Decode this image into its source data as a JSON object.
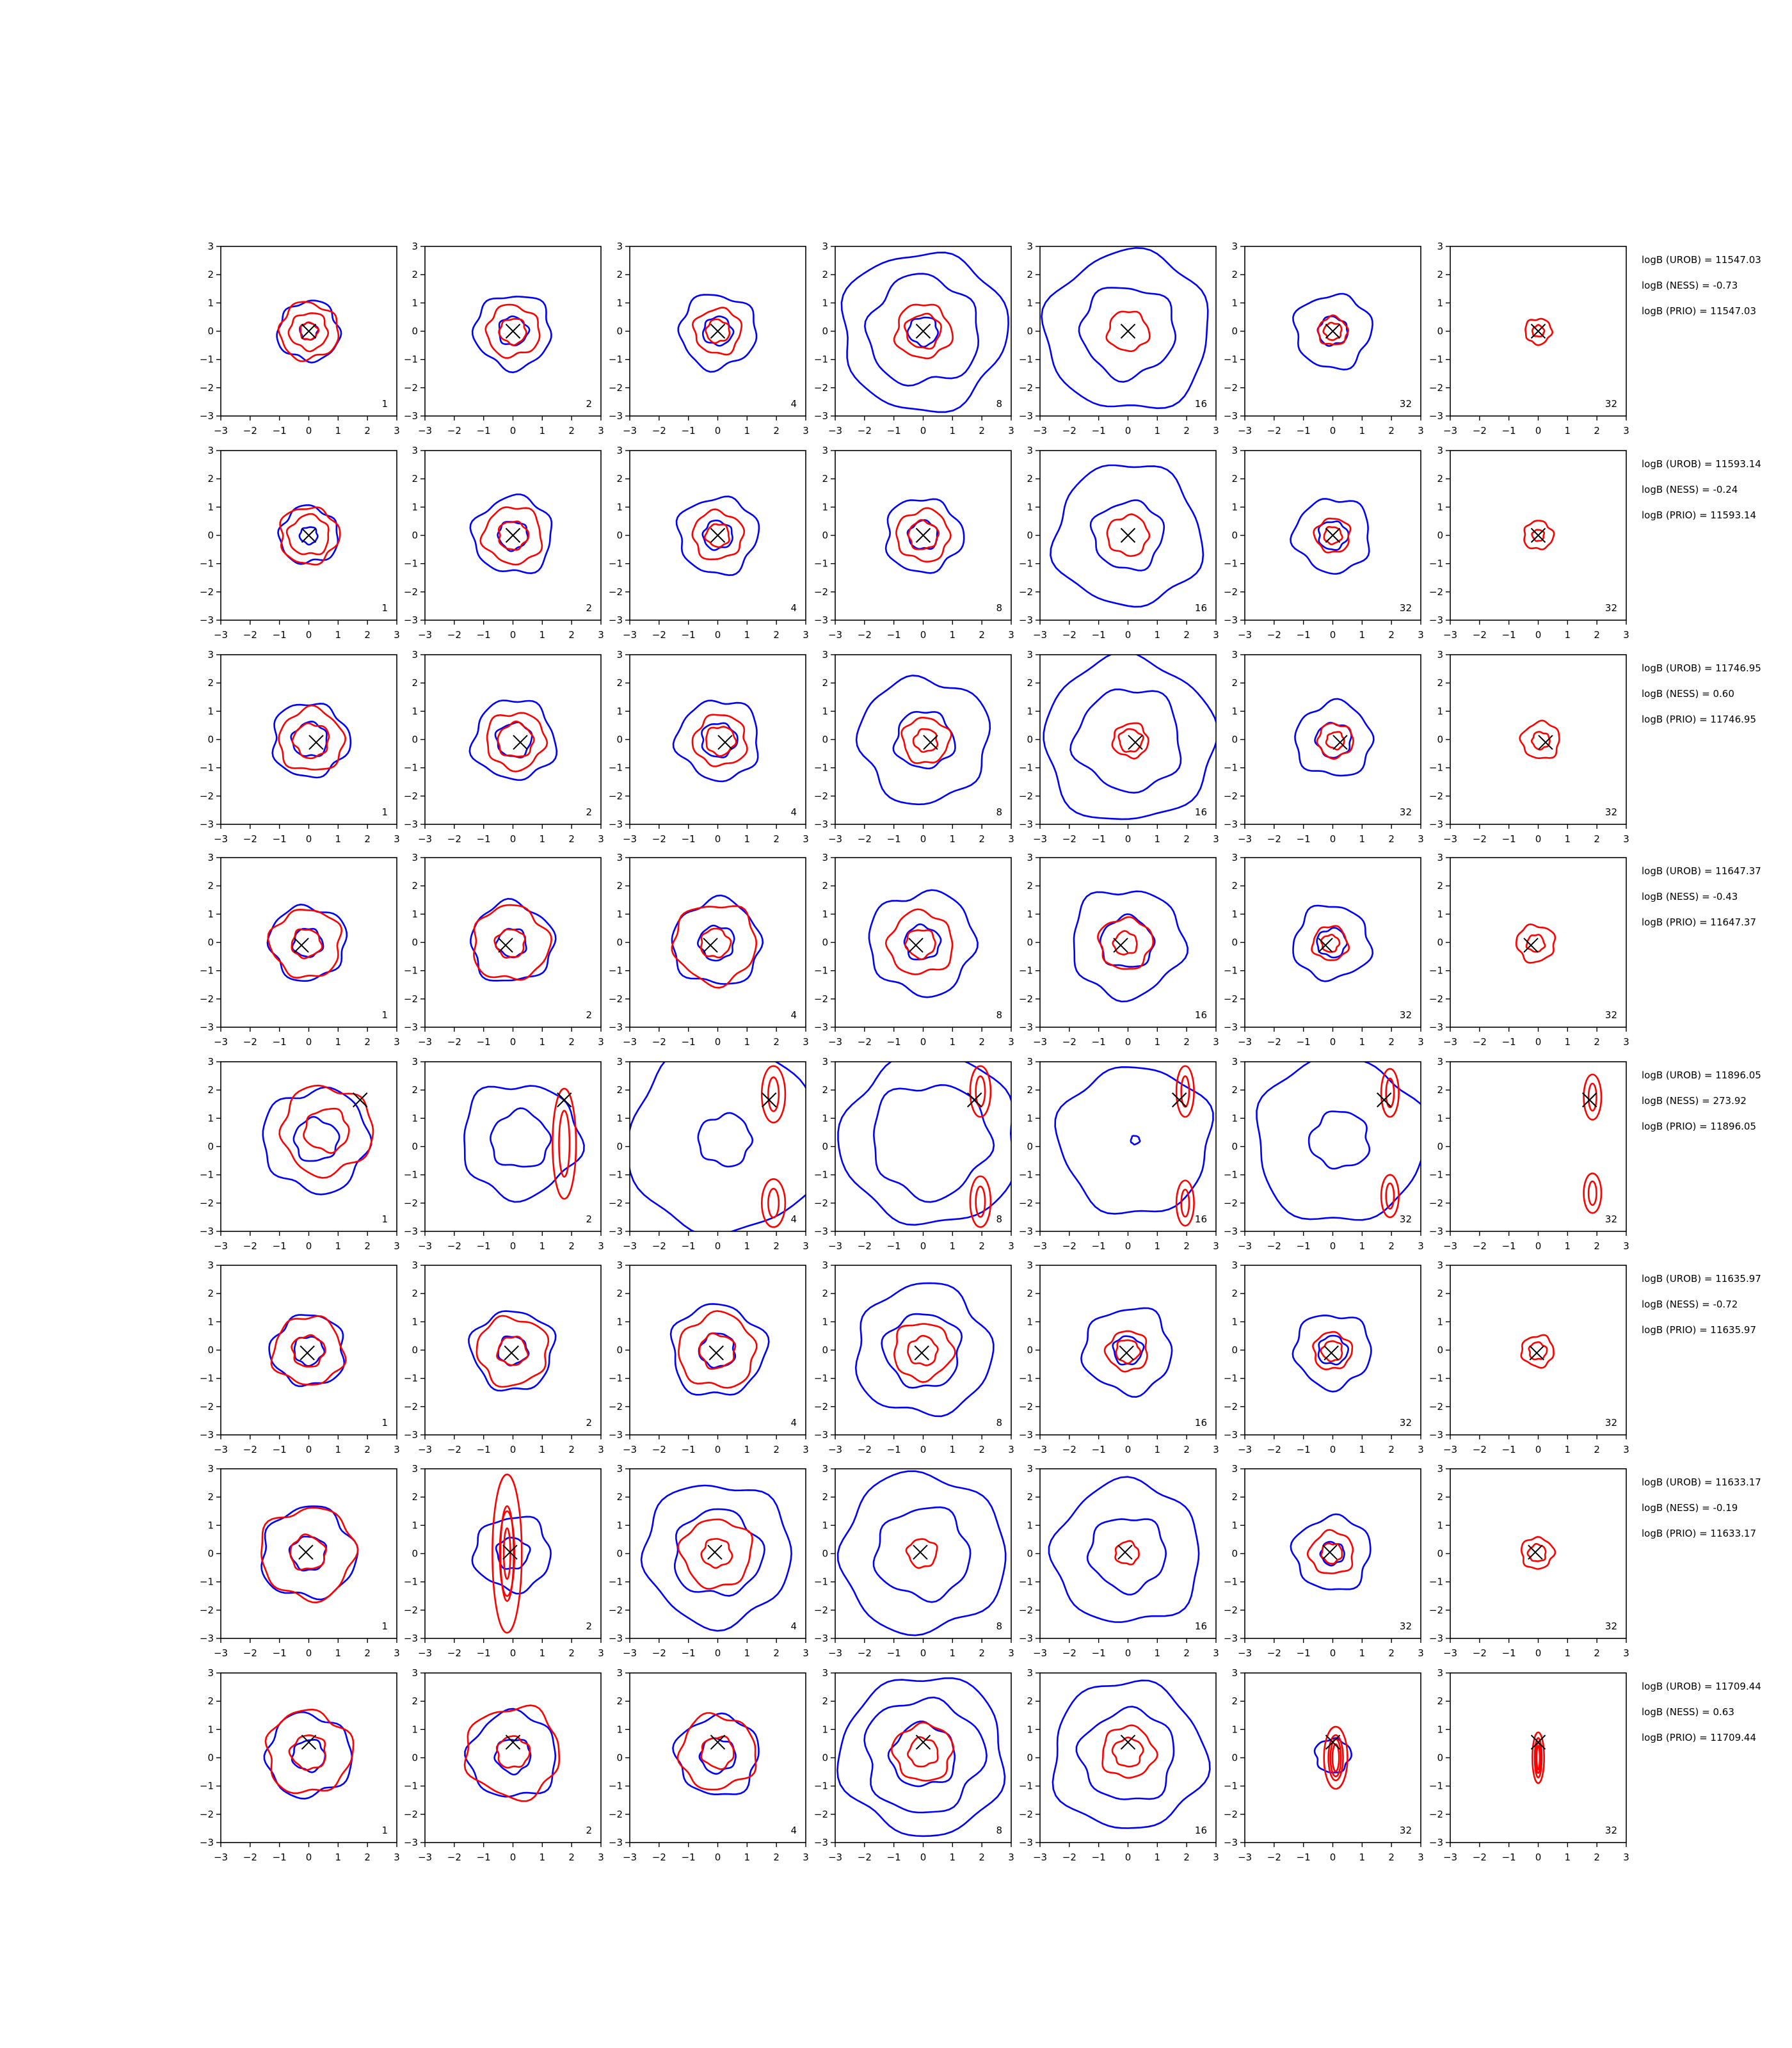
{
  "chart_data": {
    "type": "contour",
    "xlim": [
      -3,
      3
    ],
    "ylim": [
      -3,
      3
    ],
    "tick_labels": [
      "−3",
      "−2",
      "−1",
      "0",
      "1",
      "2",
      "3"
    ],
    "tick_values": [
      -3,
      -2,
      -1,
      0,
      1,
      2,
      3
    ],
    "column_labels": [
      "1",
      "2",
      "4",
      "8",
      "16",
      "32",
      "32"
    ],
    "colors": {
      "blue": "#0000ff",
      "red": "#ff0000",
      "marker": "#000000"
    },
    "rows": [
      {
        "marker": [
          0,
          0
        ],
        "texts": [
          "logB (UROB) = 11547.03",
          "logB (NESS) = -0.73",
          "logB (PRIO) = 11547.03"
        ],
        "panels": [
          {
            "blue": [
              0.3,
              1.05
            ],
            "red": [
              0.3,
              0.65,
              1.0
            ]
          },
          {
            "blue": [
              0.5,
              1.3
            ],
            "red": [
              0.45,
              0.9
            ]
          },
          {
            "blue": [
              0.5,
              1.3
            ],
            "red": [
              0.4,
              0.8
            ]
          },
          {
            "blue": [
              0.5,
              1.9,
              2.8
            ],
            "red": [
              0.6,
              0.95
            ]
          },
          {
            "blue": [
              1.6,
              2.8
            ],
            "red": [
              0.7
            ]
          },
          {
            "blue": [
              0.5,
              1.3
            ],
            "red": [
              0.3,
              0.5
            ]
          },
          {
            "blue": [],
            "red": [
              0.2,
              0.45
            ]
          }
        ]
      },
      {
        "marker": [
          0,
          0
        ],
        "texts": [
          "logB (UROB) = 11593.14",
          "logB (NESS) = -0.24",
          "logB (PRIO) = 11593.14"
        ],
        "panels": [
          {
            "blue": [
              0.3,
              1.0
            ],
            "red": [
              0.7,
              1.0
            ]
          },
          {
            "blue": [
              0.5,
              1.35
            ],
            "red": [
              0.5,
              1.0
            ]
          },
          {
            "blue": [
              0.5,
              1.35
            ],
            "red": [
              0.4,
              0.85
            ]
          },
          {
            "blue": [
              0.5,
              1.3
            ],
            "red": [
              0.5,
              0.9
            ]
          },
          {
            "blue": [
              1.2,
              2.5
            ],
            "red": [
              0.7
            ]
          },
          {
            "blue": [
              0.5,
              1.3
            ],
            "red": [
              0.3,
              0.6
            ]
          },
          {
            "blue": [],
            "red": [
              0.2,
              0.5
            ]
          }
        ]
      },
      {
        "marker": [
          0.25,
          -0.1
        ],
        "texts": [
          "logB (UROB) = 11746.95",
          "logB (NESS) = 0.60",
          "logB (PRIO) = 11746.95"
        ],
        "panels": [
          {
            "blue": [
              0.6,
              1.3
            ],
            "red": [
              0.6,
              1.1
            ]
          },
          {
            "blue": [
              0.6,
              1.4
            ],
            "red": [
              0.6,
              1.0
            ]
          },
          {
            "blue": [
              0.6,
              1.4
            ],
            "red": [
              0.5,
              0.9
            ]
          },
          {
            "blue": [
              1.0,
              2.2
            ],
            "red": [
              0.4,
              0.8
            ]
          },
          {
            "blue": [
              1.8,
              2.9
            ],
            "red": [
              0.4,
              0.6
            ]
          },
          {
            "blue": [
              0.6,
              1.3
            ],
            "red": [
              0.3,
              0.6
            ]
          },
          {
            "blue": [],
            "red": [
              0.3,
              0.65
            ]
          }
        ]
      },
      {
        "marker": [
          -0.25,
          -0.1
        ],
        "texts": [
          "logB (UROB) = 11647.37",
          "logB (NESS) = -0.43",
          "logB (PRIO) = 11647.37"
        ],
        "panels": [
          {
            "blue": [
              0.5,
              1.3
            ],
            "red": [
              0.5,
              1.2
            ]
          },
          {
            "blue": [
              0.5,
              1.4
            ],
            "red": [
              0.5,
              1.3
            ]
          },
          {
            "blue": [
              0.6,
              1.5
            ],
            "red": [
              0.5,
              1.4
            ]
          },
          {
            "blue": [
              0.6,
              1.8
            ],
            "red": [
              0.5,
              1.1
            ]
          },
          {
            "blue": [
              0.9,
              1.9
            ],
            "red": [
              0.4,
              0.9
            ]
          },
          {
            "blue": [
              0.5,
              1.3
            ],
            "red": [
              0.3,
              0.6
            ]
          },
          {
            "blue": [],
            "red": [
              0.3,
              0.65
            ]
          }
        ]
      },
      {
        "marker": [
          1.75,
          1.65
        ],
        "texts": [
          "logB (UROB) = 11896.05",
          "logB (NESS) = 273.92",
          "logB (PRIO) = 11896.05"
        ],
        "panels": [
          {
            "blue": [
              0.75,
              1.8
            ],
            "red": [
              0.75,
              1.55
            ]
          },
          {
            "blue": [
              1.0,
              2.0
            ],
            "red": [],
            "ellipse": [
              [
                1.75,
                0.1,
                0.4,
                1.95
              ]
            ]
          },
          {
            "blue": [
              0.9,
              3.3
            ],
            "red": [],
            "ellipse": [
              [
                1.9,
                1.85,
                0.4,
                1.0
              ],
              [
                1.9,
                -2.0,
                0.4,
                0.85
              ]
            ]
          },
          {
            "blue": [
              2.0,
              3.0
            ],
            "red": [],
            "ellipse": [
              [
                1.95,
                1.95,
                0.35,
                0.9
              ],
              [
                1.95,
                -1.95,
                0.35,
                0.9
              ]
            ]
          },
          {
            "blue": [
              0.15,
              2.6
            ],
            "red": [],
            "ellipse": [
              [
                1.95,
                1.95,
                0.3,
                0.9
              ],
              [
                1.95,
                -2.0,
                0.3,
                0.8
              ]
            ]
          },
          {
            "blue": [
              1.0,
              2.9
            ],
            "red": [],
            "ellipse": [
              [
                1.95,
                1.9,
                0.3,
                0.85
              ],
              [
                1.95,
                -1.75,
                0.3,
                0.75
              ]
            ]
          },
          {
            "blue": [],
            "red": [],
            "ellipse": [
              [
                1.85,
                1.75,
                0.3,
                0.8
              ],
              [
                1.85,
                -1.65,
                0.3,
                0.7
              ]
            ]
          }
        ]
      },
      {
        "marker": [
          -0.05,
          -0.1
        ],
        "texts": [
          "logB (UROB) = 11635.97",
          "logB (NESS) = -0.72",
          "logB (PRIO) = 11635.97"
        ],
        "panels": [
          {
            "blue": [
              0.5,
              1.25
            ],
            "red": [
              0.55,
              1.2
            ]
          },
          {
            "blue": [
              0.5,
              1.4
            ],
            "red": [
              0.5,
              1.2
            ]
          },
          {
            "blue": [
              0.6,
              1.6
            ],
            "red": [
              0.6,
              1.3
            ]
          },
          {
            "blue": [
              1.3,
              2.3
            ],
            "red": [
              0.5,
              1.0
            ]
          },
          {
            "blue": [
              0.5,
              1.5
            ],
            "red": [
              0.4,
              0.7
            ]
          },
          {
            "blue": [
              0.5,
              1.3
            ],
            "red": [
              0.35,
              0.65
            ]
          },
          {
            "blue": [],
            "red": [
              0.3,
              0.55
            ]
          }
        ]
      },
      {
        "marker": [
          -0.1,
          0.05
        ],
        "texts": [
          "logB (UROB) = 11633.17",
          "logB (NESS) = -0.19",
          "logB (PRIO) = 11633.17"
        ],
        "panels": [
          {
            "blue": [
              0.6,
              1.6
            ],
            "red": [
              0.6,
              1.6
            ]
          },
          {
            "blue": [
              0.55,
              1.3
            ],
            "red": [],
            "ellipse": [
              [
                -0.2,
                0.0,
                0.25,
                1.5
              ],
              [
                -0.2,
                0.0,
                0.5,
                2.8
              ]
            ]
          },
          {
            "blue": [
              1.5,
              2.5
            ],
            "red": [
              0.5,
              1.2
            ]
          },
          {
            "blue": [
              1.6,
              2.8
            ],
            "red": [
              0.5
            ]
          },
          {
            "blue": [
              1.3,
              2.5
            ],
            "red": [
              0.4
            ]
          },
          {
            "blue": [
              0.4,
              1.3
            ],
            "red": [
              0.35,
              0.75
            ]
          },
          {
            "blue": [],
            "red": [
              0.3,
              0.55
            ]
          }
        ]
      },
      {
        "marker": [
          0.0,
          0.55
        ],
        "texts": [
          "logB (UROB) = 11709.44",
          "logB (NESS) = 0.63",
          "logB (PRIO) = 11709.44"
        ],
        "panels": [
          {
            "blue": [
              0.55,
              1.45
            ],
            "red": [
              0.6,
              1.45
            ]
          },
          {
            "blue": [
              0.6,
              1.5
            ],
            "red": [
              0.55,
              1.6
            ]
          },
          {
            "blue": [
              0.6,
              1.4
            ],
            "red": [
              0.55,
              1.3
            ]
          },
          {
            "blue": [
              1.1,
              2.0,
              2.8
            ],
            "red": [
              0.5,
              1.0
            ]
          },
          {
            "blue": [
              1.6,
              2.6
            ],
            "red": [
              0.5,
              0.9
            ]
          },
          {
            "blue": [
              0.6
            ],
            "red": [],
            "ellipse": [
              [
                0.1,
                0.0,
                0.25,
                0.8
              ],
              [
                0.1,
                0.0,
                0.4,
                1.1
              ]
            ]
          },
          {
            "blue": [],
            "red": [],
            "ellipse": [
              [
                0.0,
                0.0,
                0.12,
                0.7
              ],
              [
                0.0,
                0.0,
                0.2,
                0.9
              ]
            ]
          }
        ]
      }
    ]
  }
}
